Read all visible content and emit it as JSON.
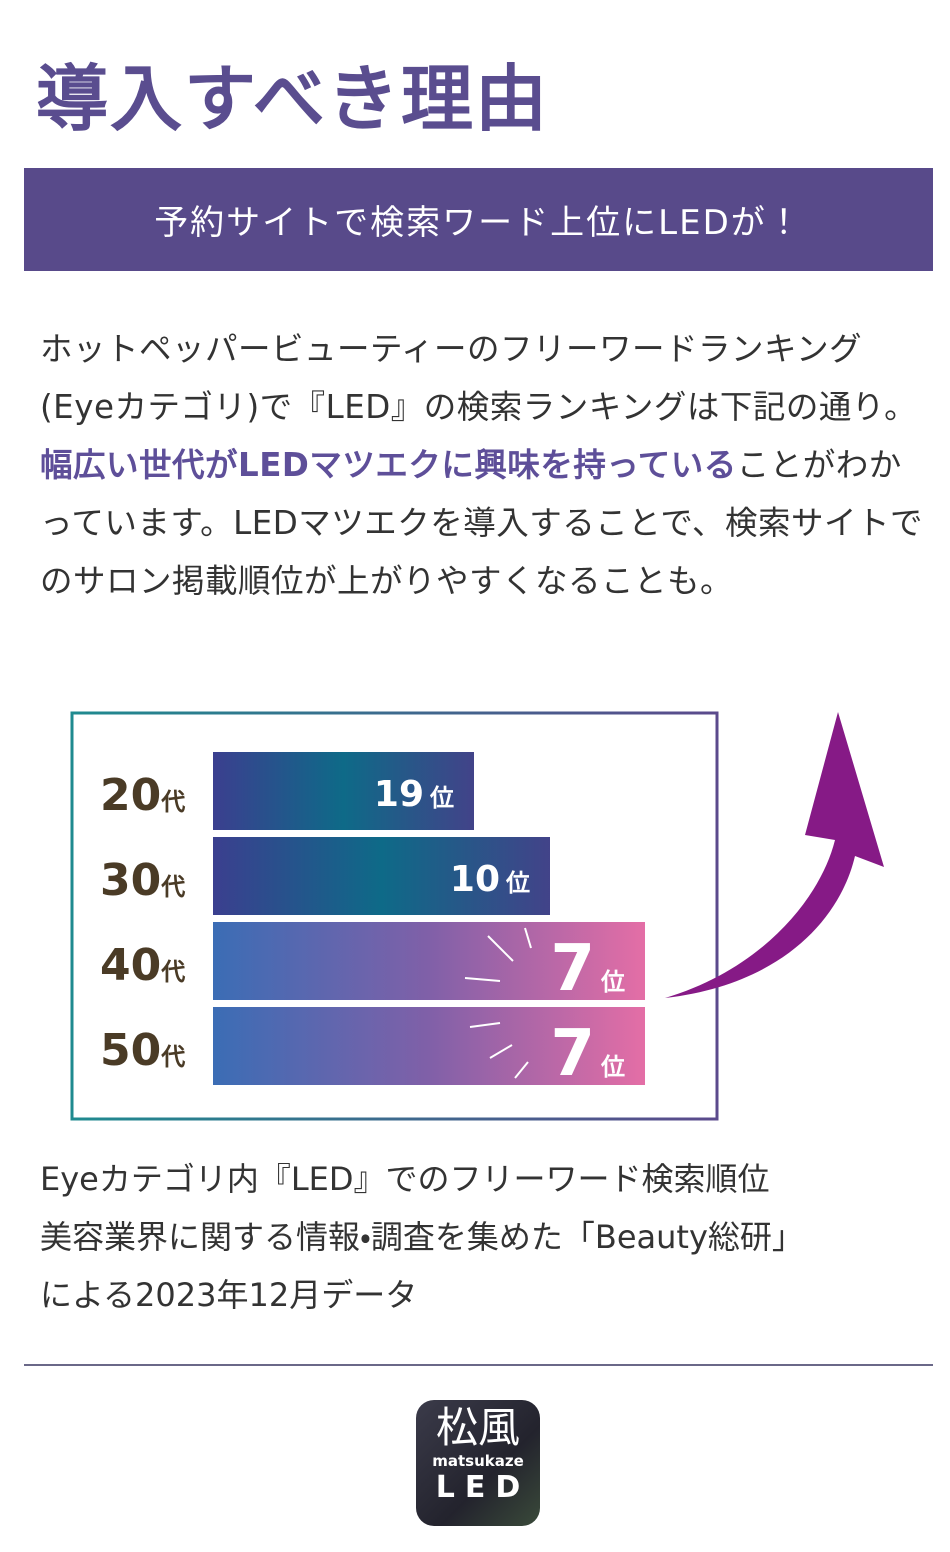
{
  "header": {
    "title": "導入すべき理由",
    "banner": "予約サイトで検索ワード上位にLEDが！"
  },
  "body": {
    "before": "ホットペッパービューティーのフリーワードランキング(Eyeカテゴリ)で『LED』の検索ランキングは下記の通り。",
    "highlight": "幅広い世代がLEDマツエクに興味を持っている",
    "after": "ことがわかっています。LEDマツエクを導入することで、検索サイトでのサロン掲載順位が上がりやすくなることも。"
  },
  "ranking": {
    "rows": [
      {
        "age": "20",
        "age_suffix": "代",
        "rank": "19",
        "rank_suffix": "位"
      },
      {
        "age": "30",
        "age_suffix": "代",
        "rank": "10",
        "rank_suffix": "位"
      },
      {
        "age": "40",
        "age_suffix": "代",
        "rank": "7",
        "rank_suffix": "位"
      },
      {
        "age": "50",
        "age_suffix": "代",
        "rank": "7",
        "rank_suffix": "位"
      }
    ]
  },
  "notes": [
    "Eyeカテゴリ内『LED』でのフリーワード検索順位",
    "美容業界に関する情報・調査を集めた「Beauty総研」",
    "による2023年12月データ"
  ],
  "logo": {
    "kanji": "松風",
    "romaji": "matsukaze",
    "brand": "LED"
  }
}
